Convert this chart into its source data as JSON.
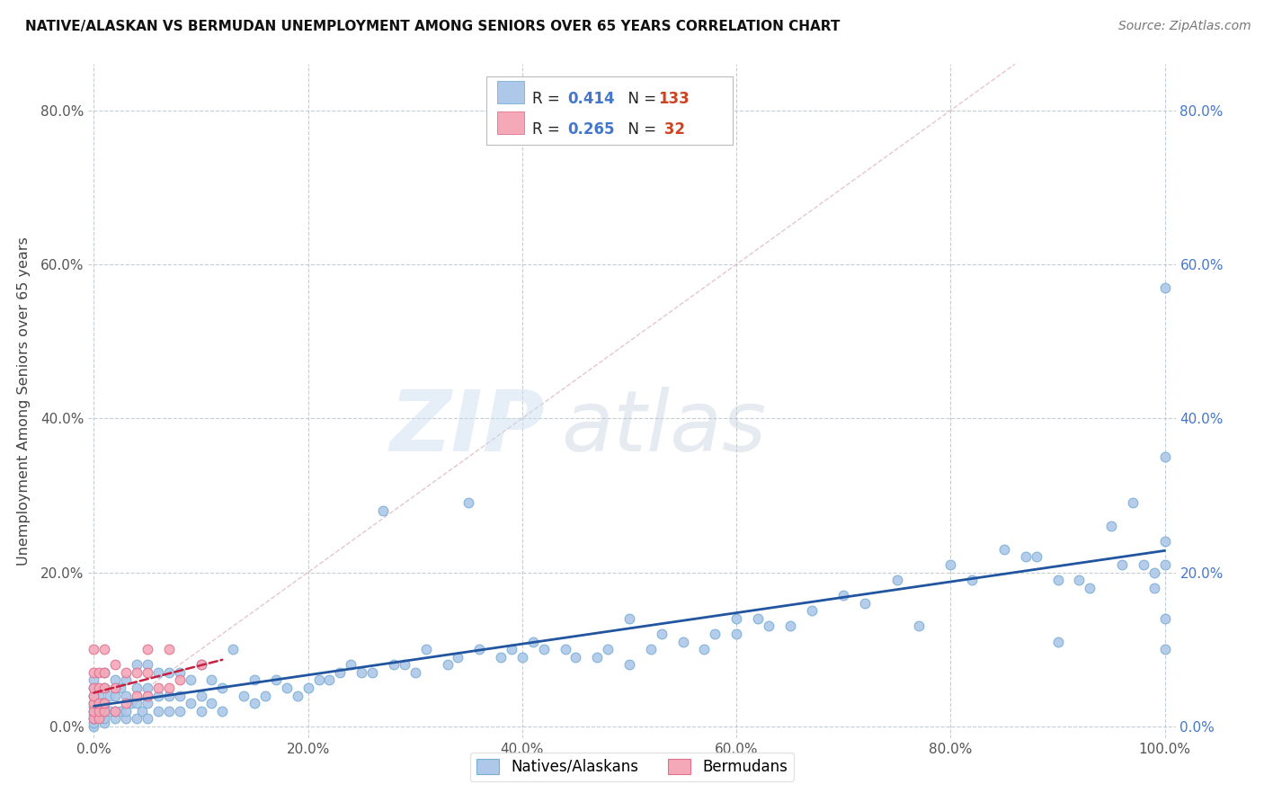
{
  "title": "NATIVE/ALASKAN VS BERMUDAN UNEMPLOYMENT AMONG SENIORS OVER 65 YEARS CORRELATION CHART",
  "source": "Source: ZipAtlas.com",
  "ylabel": "Unemployment Among Seniors over 65 years",
  "xlabel": "",
  "xlim": [
    -0.005,
    1.01
  ],
  "ylim": [
    -0.015,
    0.86
  ],
  "xticks": [
    0.0,
    0.2,
    0.4,
    0.6,
    0.8,
    1.0
  ],
  "yticks": [
    0.0,
    0.2,
    0.4,
    0.6,
    0.8
  ],
  "blue_color": "#adc8e8",
  "blue_edge": "#7aafd4",
  "pink_color": "#f5a8b8",
  "pink_edge": "#e07090",
  "trend_blue": "#2255a0",
  "trend_pink": "#c82040",
  "R_blue": 0.414,
  "N_blue": 133,
  "R_pink": 0.265,
  "N_pink": 32,
  "blue_x": [
    0.0,
    0.0,
    0.0,
    0.0,
    0.0,
    0.0,
    0.0,
    0.0,
    0.0,
    0.0,
    0.005,
    0.005,
    0.005,
    0.005,
    0.008,
    0.008,
    0.01,
    0.01,
    0.01,
    0.01,
    0.01,
    0.01,
    0.015,
    0.015,
    0.02,
    0.02,
    0.02,
    0.02,
    0.025,
    0.025,
    0.03,
    0.03,
    0.03,
    0.03,
    0.035,
    0.04,
    0.04,
    0.04,
    0.04,
    0.045,
    0.05,
    0.05,
    0.05,
    0.05,
    0.06,
    0.06,
    0.06,
    0.07,
    0.07,
    0.07,
    0.08,
    0.08,
    0.08,
    0.09,
    0.09,
    0.1,
    0.1,
    0.1,
    0.11,
    0.11,
    0.12,
    0.12,
    0.13,
    0.14,
    0.15,
    0.15,
    0.16,
    0.17,
    0.18,
    0.19,
    0.2,
    0.21,
    0.22,
    0.23,
    0.24,
    0.25,
    0.26,
    0.27,
    0.28,
    0.29,
    0.3,
    0.31,
    0.33,
    0.34,
    0.35,
    0.36,
    0.38,
    0.39,
    0.4,
    0.41,
    0.42,
    0.44,
    0.45,
    0.47,
    0.48,
    0.5,
    0.5,
    0.52,
    0.53,
    0.55,
    0.57,
    0.58,
    0.6,
    0.6,
    0.62,
    0.63,
    0.65,
    0.67,
    0.7,
    0.72,
    0.75,
    0.77,
    0.8,
    0.82,
    0.85,
    0.87,
    0.88,
    0.9,
    0.9,
    0.92,
    0.93,
    0.95,
    0.96,
    0.97,
    0.98,
    0.99,
    0.99,
    1.0,
    1.0,
    1.0,
    1.0,
    1.0,
    1.0
  ],
  "blue_y": [
    0.0,
    0.005,
    0.01,
    0.015,
    0.02,
    0.025,
    0.03,
    0.04,
    0.05,
    0.06,
    0.01,
    0.02,
    0.03,
    0.04,
    0.01,
    0.03,
    0.005,
    0.01,
    0.02,
    0.03,
    0.05,
    0.07,
    0.02,
    0.04,
    0.01,
    0.02,
    0.04,
    0.06,
    0.02,
    0.05,
    0.01,
    0.02,
    0.04,
    0.06,
    0.03,
    0.01,
    0.03,
    0.05,
    0.08,
    0.02,
    0.01,
    0.03,
    0.05,
    0.08,
    0.02,
    0.04,
    0.07,
    0.02,
    0.04,
    0.07,
    0.02,
    0.04,
    0.07,
    0.03,
    0.06,
    0.02,
    0.04,
    0.08,
    0.03,
    0.06,
    0.02,
    0.05,
    0.1,
    0.04,
    0.03,
    0.06,
    0.04,
    0.06,
    0.05,
    0.04,
    0.05,
    0.06,
    0.06,
    0.07,
    0.08,
    0.07,
    0.07,
    0.28,
    0.08,
    0.08,
    0.07,
    0.1,
    0.08,
    0.09,
    0.29,
    0.1,
    0.09,
    0.1,
    0.09,
    0.11,
    0.1,
    0.1,
    0.09,
    0.09,
    0.1,
    0.08,
    0.14,
    0.1,
    0.12,
    0.11,
    0.1,
    0.12,
    0.12,
    0.14,
    0.14,
    0.13,
    0.13,
    0.15,
    0.17,
    0.16,
    0.19,
    0.13,
    0.21,
    0.19,
    0.23,
    0.22,
    0.22,
    0.11,
    0.19,
    0.19,
    0.18,
    0.26,
    0.21,
    0.29,
    0.21,
    0.18,
    0.2,
    0.24,
    0.35,
    0.57,
    0.21,
    0.14,
    0.1
  ],
  "pink_x": [
    0.0,
    0.0,
    0.0,
    0.0,
    0.0,
    0.0,
    0.0,
    0.005,
    0.005,
    0.005,
    0.005,
    0.005,
    0.01,
    0.01,
    0.01,
    0.01,
    0.01,
    0.02,
    0.02,
    0.02,
    0.03,
    0.03,
    0.04,
    0.04,
    0.05,
    0.05,
    0.05,
    0.06,
    0.07,
    0.07,
    0.08,
    0.1
  ],
  "pink_y": [
    0.01,
    0.02,
    0.03,
    0.04,
    0.05,
    0.07,
    0.1,
    0.01,
    0.02,
    0.03,
    0.05,
    0.07,
    0.02,
    0.03,
    0.05,
    0.07,
    0.1,
    0.02,
    0.05,
    0.08,
    0.03,
    0.07,
    0.04,
    0.07,
    0.04,
    0.07,
    0.1,
    0.05,
    0.05,
    0.1,
    0.06,
    0.08
  ],
  "watermark_zip": "ZIP",
  "watermark_atlas": "atlas",
  "background_color": "#ffffff",
  "grid_color": "#c0c8d0",
  "marker_size": 60,
  "title_fontsize": 11,
  "source_fontsize": 10
}
